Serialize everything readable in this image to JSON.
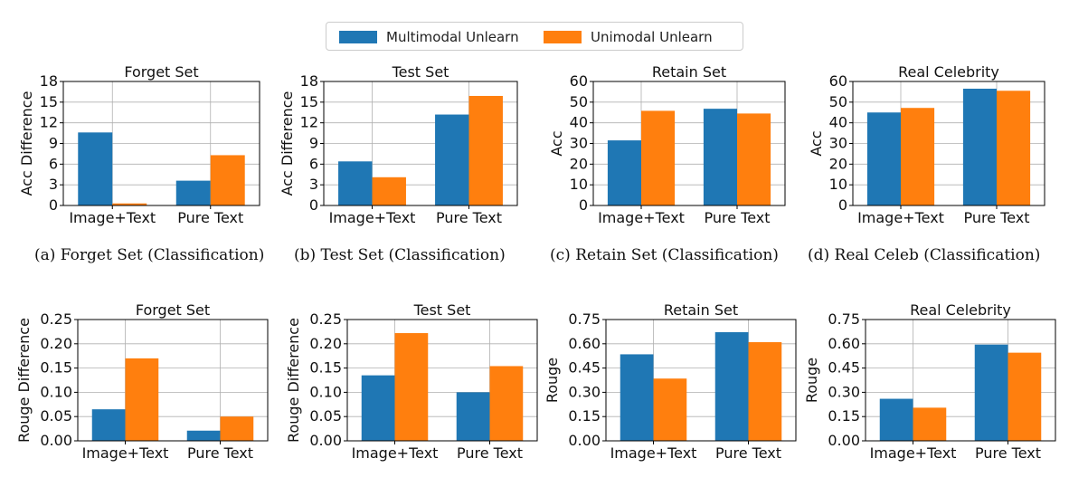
{
  "legend": {
    "items": [
      {
        "label": "Multimodal Unlearn",
        "color": "#1f77b4"
      },
      {
        "label": "Unimodal Unlearn",
        "color": "#ff7f0e"
      }
    ]
  },
  "captions": [
    "(a) Forget Set (Classification)",
    "(b) Test Set (Classification)",
    "(c) Retain Set (Classification)",
    "(d) Real Celeb (Classification)"
  ],
  "chart_data": [
    {
      "type": "bar",
      "title": "Forget Set",
      "ylabel": "Acc Difference",
      "ylim": [
        0,
        18
      ],
      "yticks": [
        "0",
        "3",
        "6",
        "9",
        "12",
        "15",
        "18"
      ],
      "yvals": [
        0,
        3,
        6,
        9,
        12,
        15,
        18
      ],
      "categories": [
        "Image+Text",
        "Pure Text"
      ],
      "series": [
        {
          "name": "Multimodal Unlearn",
          "values": [
            10.6,
            3.6
          ]
        },
        {
          "name": "Unimodal Unlearn",
          "values": [
            0.3,
            7.3
          ]
        }
      ]
    },
    {
      "type": "bar",
      "title": "Test Set",
      "ylabel": "Acc Difference",
      "ylim": [
        0,
        18
      ],
      "yticks": [
        "0",
        "3",
        "6",
        "9",
        "12",
        "15",
        "18"
      ],
      "yvals": [
        0,
        3,
        6,
        9,
        12,
        15,
        18
      ],
      "categories": [
        "Image+Text",
        "Pure Text"
      ],
      "series": [
        {
          "name": "Multimodal Unlearn",
          "values": [
            6.4,
            13.2
          ]
        },
        {
          "name": "Unimodal Unlearn",
          "values": [
            4.1,
            15.9
          ]
        }
      ]
    },
    {
      "type": "bar",
      "title": "Retain Set",
      "ylabel": "Acc",
      "ylim": [
        0,
        60
      ],
      "yticks": [
        "0",
        "10",
        "20",
        "30",
        "40",
        "50",
        "60"
      ],
      "yvals": [
        0,
        10,
        20,
        30,
        40,
        50,
        60
      ],
      "categories": [
        "Image+Text",
        "Pure Text"
      ],
      "series": [
        {
          "name": "Multimodal Unlearn",
          "values": [
            31.5,
            46.8
          ]
        },
        {
          "name": "Unimodal Unlearn",
          "values": [
            45.8,
            44.5
          ]
        }
      ]
    },
    {
      "type": "bar",
      "title": "Real Celebrity",
      "ylabel": "Acc",
      "ylim": [
        0,
        60
      ],
      "yticks": [
        "0",
        "10",
        "20",
        "30",
        "40",
        "50",
        "60"
      ],
      "yvals": [
        0,
        10,
        20,
        30,
        40,
        50,
        60
      ],
      "categories": [
        "Image+Text",
        "Pure Text"
      ],
      "series": [
        {
          "name": "Multimodal Unlearn",
          "values": [
            45.0,
            56.5
          ]
        },
        {
          "name": "Unimodal Unlearn",
          "values": [
            47.2,
            55.5
          ]
        }
      ]
    },
    {
      "type": "bar",
      "title": "Forget Set",
      "ylabel": "Rouge Difference",
      "ylim": [
        0,
        0.25
      ],
      "yticks": [
        "0.00",
        "0.05",
        "0.10",
        "0.15",
        "0.20",
        "0.25"
      ],
      "yvals": [
        0,
        0.05,
        0.1,
        0.15,
        0.2,
        0.25
      ],
      "categories": [
        "Image+Text",
        "Pure Text"
      ],
      "series": [
        {
          "name": "Multimodal Unlearn",
          "values": [
            0.065,
            0.021
          ]
        },
        {
          "name": "Unimodal Unlearn",
          "values": [
            0.17,
            0.05
          ]
        }
      ]
    },
    {
      "type": "bar",
      "title": "Test Set",
      "ylabel": "Rouge Difference",
      "ylim": [
        0,
        0.25
      ],
      "yticks": [
        "0.00",
        "0.05",
        "0.10",
        "0.15",
        "0.20",
        "0.25"
      ],
      "yvals": [
        0,
        0.05,
        0.1,
        0.15,
        0.2,
        0.25
      ],
      "categories": [
        "Image+Text",
        "Pure Text"
      ],
      "series": [
        {
          "name": "Multimodal Unlearn",
          "values": [
            0.135,
            0.1
          ]
        },
        {
          "name": "Unimodal Unlearn",
          "values": [
            0.222,
            0.154
          ]
        }
      ]
    },
    {
      "type": "bar",
      "title": "Retain Set",
      "ylabel": "Rouge",
      "ylim": [
        0,
        0.75
      ],
      "yticks": [
        "0.00",
        "0.15",
        "0.30",
        "0.45",
        "0.60",
        "0.75"
      ],
      "yvals": [
        0,
        0.15,
        0.3,
        0.45,
        0.6,
        0.75
      ],
      "categories": [
        "Image+Text",
        "Pure Text"
      ],
      "series": [
        {
          "name": "Multimodal Unlearn",
          "values": [
            0.535,
            0.672
          ]
        },
        {
          "name": "Unimodal Unlearn",
          "values": [
            0.385,
            0.61
          ]
        }
      ]
    },
    {
      "type": "bar",
      "title": "Real Celebrity",
      "ylabel": "Rouge",
      "ylim": [
        0,
        0.75
      ],
      "yticks": [
        "0.00",
        "0.15",
        "0.30",
        "0.45",
        "0.60",
        "0.75"
      ],
      "yvals": [
        0,
        0.15,
        0.3,
        0.45,
        0.6,
        0.75
      ],
      "categories": [
        "Image+Text",
        "Pure Text"
      ],
      "series": [
        {
          "name": "Multimodal Unlearn",
          "values": [
            0.26,
            0.595
          ]
        },
        {
          "name": "Unimodal Unlearn",
          "values": [
            0.205,
            0.545
          ]
        }
      ]
    }
  ]
}
